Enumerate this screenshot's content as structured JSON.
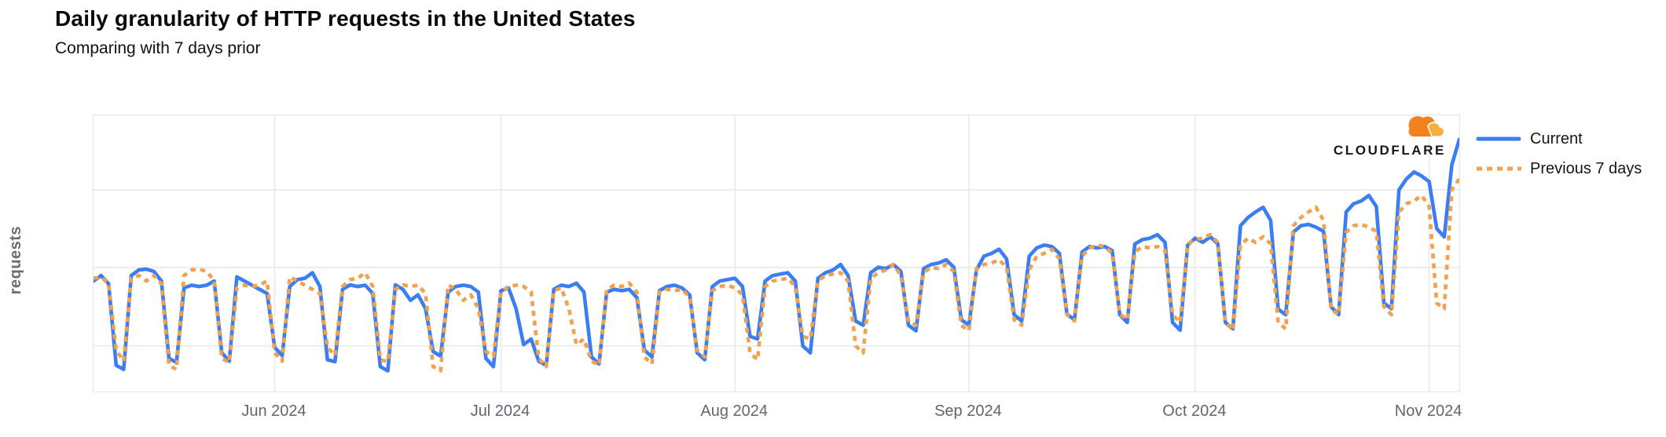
{
  "header": {
    "title": "Daily granularity of HTTP requests in the United States",
    "subtitle": "Comparing with 7 days prior"
  },
  "branding": {
    "wordmark": "CLOUDFLARE",
    "cloud_primary_color": "#F48120",
    "cloud_secondary_color": "#FAAD3F"
  },
  "axes": {
    "y_label": "requests",
    "y_tick_labels_visible": false,
    "x_tick_labels": [
      "Jun 2024",
      "Jul 2024",
      "Aug 2024",
      "Sep 2024",
      "Oct 2024",
      "Nov 2024"
    ]
  },
  "colors": {
    "current_line": "#3B7DF2",
    "previous_line": "#F2A14E",
    "gridline": "#e7e7e7",
    "axis_text": "#5e6670"
  },
  "chart_data": {
    "type": "line",
    "title": "Daily granularity of HTTP requests in the United States",
    "subtitle": "Comparing with 7 days prior",
    "ylabel": "requests",
    "xlabel": "",
    "x_unit": "day",
    "x_start": "2024-05-08",
    "x_end": "2024-11-05",
    "grid": true,
    "legend_position": "right-outside",
    "y_axis_numeric_labels_shown": false,
    "value_scale": "relative units 0-100 (no numeric y ticks are displayed in the chart)",
    "x_ticks": [
      {
        "label": "Jun 2024",
        "index": 24
      },
      {
        "label": "Jul 2024",
        "index": 54
      },
      {
        "label": "Aug 2024",
        "index": 85
      },
      {
        "label": "Sep 2024",
        "index": 116
      },
      {
        "label": "Oct 2024",
        "index": 146
      },
      {
        "label": "Nov 2024",
        "index": 177
      }
    ],
    "pattern_notes": "Daily series with weekly seasonality (weekday plateaus, weekend dips), a July 4 holiday dip, rising trend from September through October, and a sharp spike on the final days (early November). The 'Previous 7 days' series is the Current series shifted forward by 7 days.",
    "series": [
      {
        "name": "Current",
        "color": "#3B7DF2",
        "style": "solid",
        "values": [
          40,
          42,
          39,
          9.5,
          8,
          42,
          44,
          44.3,
          43.5,
          40,
          12,
          10.5,
          37.5,
          38.5,
          38,
          38.5,
          40,
          14,
          11,
          41.5,
          40,
          38.5,
          37,
          35.5,
          16,
          13,
          38,
          40.5,
          41,
          43,
          38,
          11.5,
          10.8,
          37,
          38.6,
          38,
          38.5,
          35.5,
          9,
          7.5,
          38.6,
          37,
          33,
          35,
          30,
          14.5,
          12.8,
          36,
          38,
          38.5,
          38,
          36,
          12,
          9,
          36.5,
          37.5,
          30,
          17,
          19,
          11,
          9.5,
          37,
          38.5,
          38,
          39.2,
          36,
          12.5,
          10,
          36,
          37,
          36.5,
          37,
          34,
          15,
          12.5,
          36.5,
          38,
          38.5,
          37.5,
          35,
          14,
          11.5,
          38,
          40,
          40.5,
          41,
          38,
          20,
          19,
          40,
          42,
          42.5,
          43,
          40,
          16.5,
          14,
          41,
          43,
          44,
          46,
          42,
          25.5,
          24,
          43,
          45,
          44.5,
          46,
          43.5,
          24,
          22,
          44.5,
          46,
          46.5,
          47.7,
          45,
          26,
          24,
          44,
          49,
          50,
          51.5,
          48,
          27.8,
          25.5,
          49,
          52,
          53,
          52.5,
          50,
          28,
          26,
          50.5,
          52.5,
          52,
          52.5,
          51,
          27.8,
          25,
          53.4,
          55,
          55.5,
          56.8,
          54,
          25,
          22.2,
          53,
          55.5,
          54,
          56,
          53.5,
          25,
          22.7,
          60,
          63,
          65,
          66.7,
          62,
          29.8,
          27.8,
          57.7,
          60,
          60.5,
          59.5,
          58,
          30.7,
          27.8,
          65,
          68,
          69,
          71,
          67,
          32,
          30,
          73,
          77,
          79.5,
          78,
          76,
          59,
          56,
          82,
          91.3
        ]
      },
      {
        "name": "Previous 7 days",
        "color": "#F2A14E",
        "style": "dotted",
        "note": "equals Current shifted forward by 7 days",
        "values": [
          41,
          41.5,
          39,
          15,
          11,
          41,
          42,
          40,
          42,
          39,
          9.5,
          8,
          42,
          44,
          44.3,
          43.5,
          40,
          12,
          10.5,
          37.5,
          38.5,
          38,
          38.5,
          40,
          14,
          11,
          41.5,
          40,
          38.5,
          37,
          35.5,
          16,
          13,
          38,
          40.5,
          41,
          43,
          38,
          11.5,
          10.8,
          37,
          38.6,
          38,
          38.5,
          35.5,
          9,
          7.5,
          38.6,
          37,
          33,
          35,
          30,
          14.5,
          12.8,
          36,
          38,
          38.5,
          38,
          36,
          12,
          9,
          36.5,
          37.5,
          30,
          17,
          19,
          11,
          9.5,
          37,
          38.5,
          38,
          39.2,
          36,
          12.5,
          10,
          36,
          37,
          36.5,
          37,
          34,
          15,
          12.5,
          36.5,
          38,
          38.5,
          37.5,
          35,
          14,
          11.5,
          38,
          40,
          40.5,
          41,
          38,
          20,
          19,
          40,
          42,
          42.5,
          43,
          40,
          16.5,
          14,
          41,
          43,
          44,
          46,
          42,
          25.5,
          24,
          43,
          45,
          44.5,
          46,
          43.5,
          24,
          22,
          44.5,
          46,
          46.5,
          47.7,
          45,
          26,
          24,
          44,
          49,
          50,
          51.5,
          48,
          27.8,
          25.5,
          49,
          52,
          53,
          52.5,
          50,
          28,
          26,
          50.5,
          52.5,
          52,
          52.5,
          51,
          27.8,
          25,
          53.4,
          55,
          55.5,
          56.8,
          54,
          25,
          22.2,
          53,
          55.5,
          54,
          56,
          53.5,
          25,
          22.7,
          60,
          63,
          65,
          66.7,
          62,
          29.8,
          27.8,
          57.7,
          60,
          60.5,
          59.5,
          58,
          30.7,
          27.8,
          65,
          68,
          69,
          71,
          67,
          32,
          30,
          73,
          77
        ]
      }
    ]
  }
}
